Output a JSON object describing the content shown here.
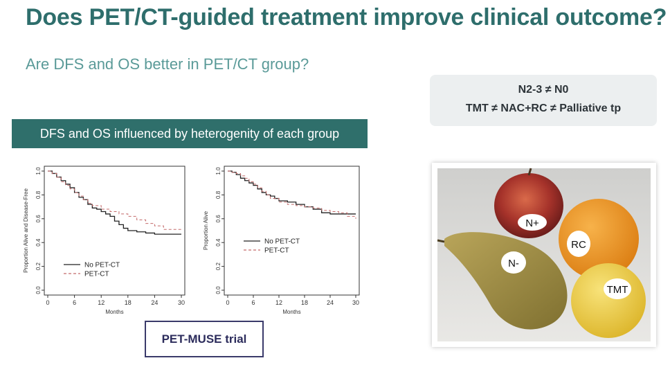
{
  "title": "Does PET/CT-guided treatment improve clinical outcome?",
  "subtitle": "Are DFS and OS better in PET/CT group?",
  "infobox": {
    "line1": "N2-3 ≠ N0",
    "line2": "TMT ≠ NAC+RC ≠ Palliative tp"
  },
  "banner": "DFS and OS influenced by heterogenity of each group",
  "trial_label": "PET-MUSE trial",
  "photo": {
    "labels": {
      "apple": "N+",
      "orange": "RC",
      "pear": "N-",
      "lemon": "TMT"
    }
  },
  "colors": {
    "title": "#2e6e6c",
    "subtitle": "#5a9a98",
    "banner": "#2f6f6b",
    "no_pet_ct": "#222222",
    "pet_ct": "#c46a6a"
  },
  "chart_data": [
    {
      "type": "line",
      "title": "",
      "xlabel": "Months",
      "ylabel": "Proportion Alive and Disease-Free",
      "xlim": [
        0,
        30
      ],
      "ylim": [
        0,
        1
      ],
      "xticks": [
        0,
        6,
        12,
        18,
        24,
        30
      ],
      "yticks": [
        "0.0",
        "0.2",
        "0.4",
        "0.6",
        "0.8",
        "1.0"
      ],
      "legend_position": "bottom-left",
      "series": [
        {
          "name": "No PET-CT",
          "style": "solid",
          "x": [
            0,
            1,
            2,
            3,
            4,
            5,
            6,
            7,
            8,
            9,
            10,
            11,
            12,
            13,
            14,
            15,
            16,
            17,
            18,
            20,
            22,
            24,
            26,
            30
          ],
          "y": [
            1.0,
            0.98,
            0.95,
            0.92,
            0.89,
            0.86,
            0.82,
            0.78,
            0.76,
            0.72,
            0.69,
            0.68,
            0.66,
            0.64,
            0.62,
            0.58,
            0.55,
            0.52,
            0.5,
            0.49,
            0.48,
            0.47,
            0.47,
            0.47
          ]
        },
        {
          "name": "PET-CT",
          "style": "dashed",
          "x": [
            0,
            1,
            2,
            3,
            4,
            5,
            6,
            7,
            8,
            9,
            10,
            12,
            14,
            16,
            18,
            20,
            22,
            24,
            26,
            30
          ],
          "y": [
            1.0,
            0.98,
            0.95,
            0.91,
            0.88,
            0.85,
            0.82,
            0.79,
            0.76,
            0.73,
            0.71,
            0.68,
            0.66,
            0.64,
            0.62,
            0.59,
            0.56,
            0.54,
            0.51,
            0.51
          ]
        }
      ]
    },
    {
      "type": "line",
      "title": "",
      "xlabel": "Months",
      "ylabel": "Proportion Alive",
      "xlim": [
        0,
        30
      ],
      "ylim": [
        0,
        1
      ],
      "xticks": [
        0,
        6,
        12,
        18,
        24,
        30
      ],
      "yticks": [
        "0.0",
        "0.2",
        "0.4",
        "0.6",
        "0.8",
        "1.0"
      ],
      "legend_position": "middle-left",
      "series": [
        {
          "name": "No PET-CT",
          "style": "solid",
          "x": [
            0,
            1,
            2,
            3,
            4,
            5,
            6,
            7,
            8,
            9,
            10,
            11,
            12,
            14,
            16,
            18,
            20,
            22,
            24,
            26,
            30
          ],
          "y": [
            1.0,
            0.99,
            0.97,
            0.94,
            0.92,
            0.9,
            0.88,
            0.85,
            0.82,
            0.8,
            0.79,
            0.77,
            0.75,
            0.74,
            0.72,
            0.7,
            0.68,
            0.65,
            0.64,
            0.64,
            0.64
          ]
        },
        {
          "name": "PET-CT",
          "style": "dashed",
          "x": [
            0,
            1,
            2,
            3,
            4,
            5,
            6,
            7,
            8,
            9,
            10,
            12,
            14,
            16,
            18,
            20,
            22,
            24,
            26,
            28,
            30
          ],
          "y": [
            1.0,
            0.99,
            0.98,
            0.96,
            0.94,
            0.91,
            0.89,
            0.86,
            0.83,
            0.8,
            0.77,
            0.74,
            0.72,
            0.71,
            0.7,
            0.69,
            0.67,
            0.66,
            0.65,
            0.62,
            0.6
          ]
        }
      ]
    }
  ]
}
